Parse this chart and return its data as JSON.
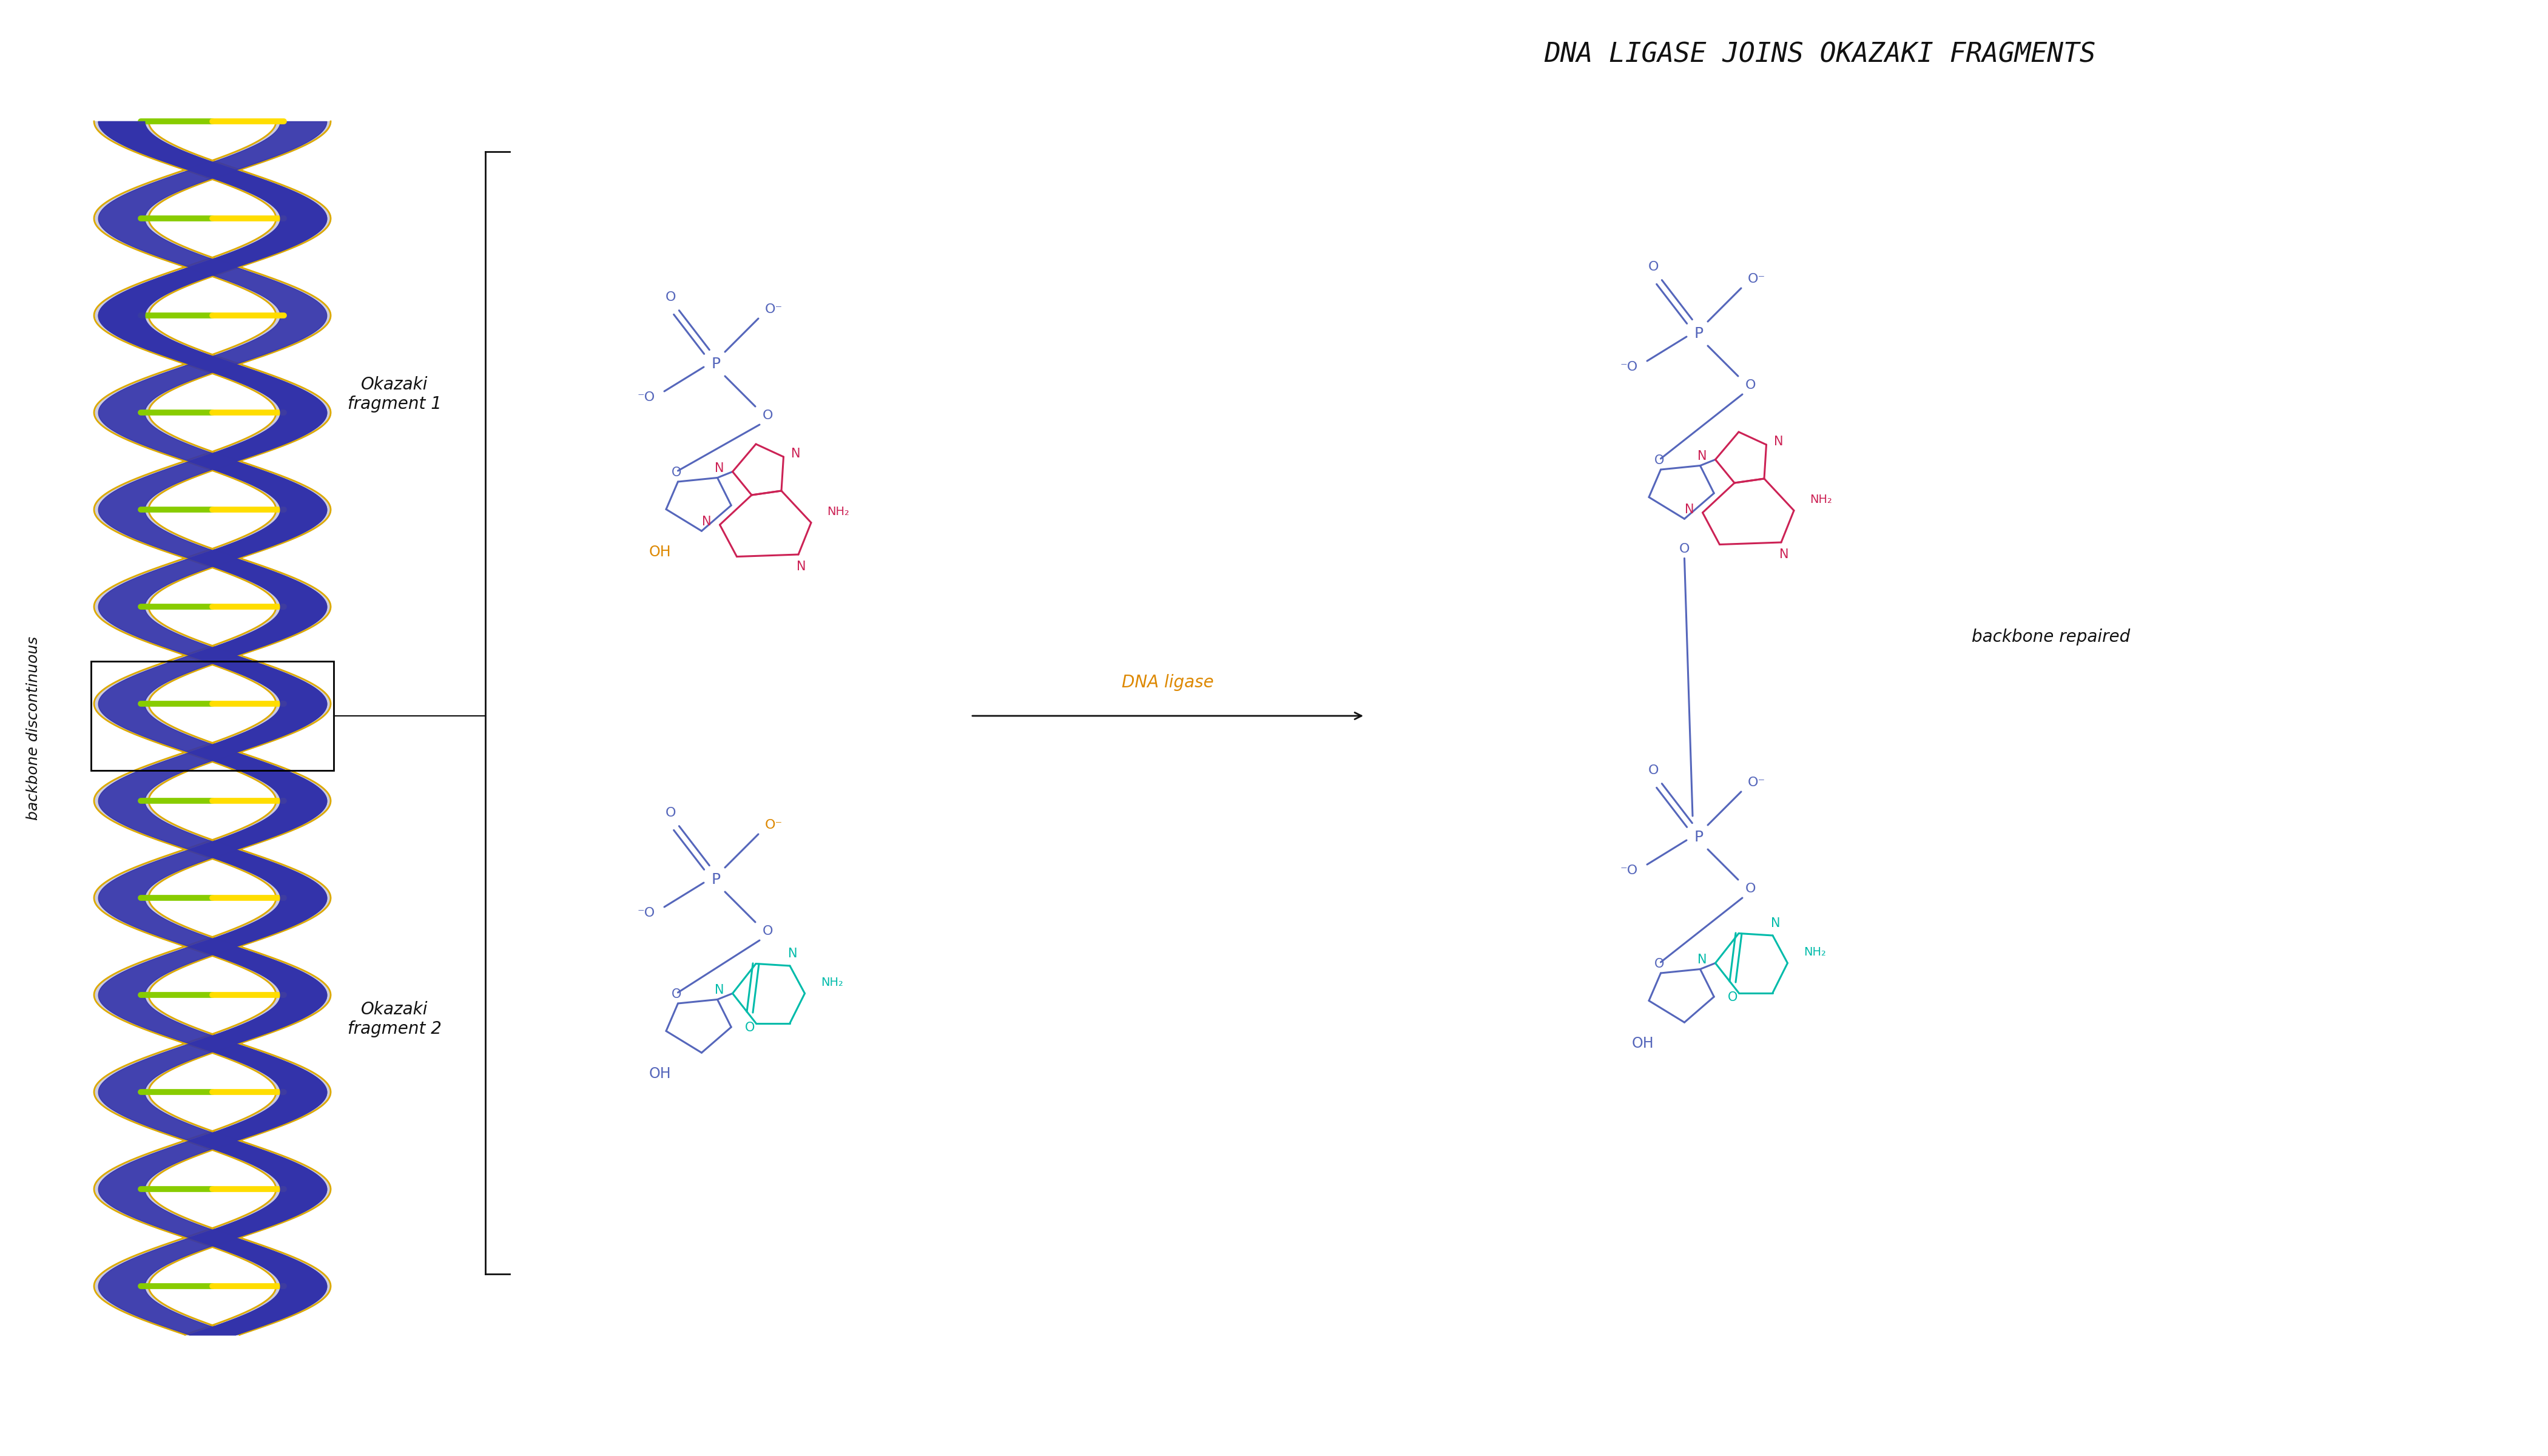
{
  "title": "DNA LIGASE JOINS OKAZAKI FRAGMENTS",
  "title_color": "#111111",
  "title_fontsize": 32,
  "bg_color": "#ffffff",
  "label_backbone": "backbone discontinuous",
  "label_fragment1": "Okazaki\nfragment 1",
  "label_fragment2": "Okazaki\nfragment 2",
  "label_dna_ligase": "DNA ligase",
  "label_backbone_repaired": "backbone repaired",
  "color_blue": "#5566bb",
  "color_red": "#cc2255",
  "color_orange": "#dd8800",
  "color_teal": "#00bbaa",
  "color_black": "#111111",
  "helix_blue": "#4444aa",
  "helix_gray": "#9999bb",
  "helix_gold": "#ddaa00",
  "base_red": "#cc2244",
  "base_yellow": "#ffdd00",
  "base_teal": "#00ccaa",
  "base_green": "#88cc00"
}
